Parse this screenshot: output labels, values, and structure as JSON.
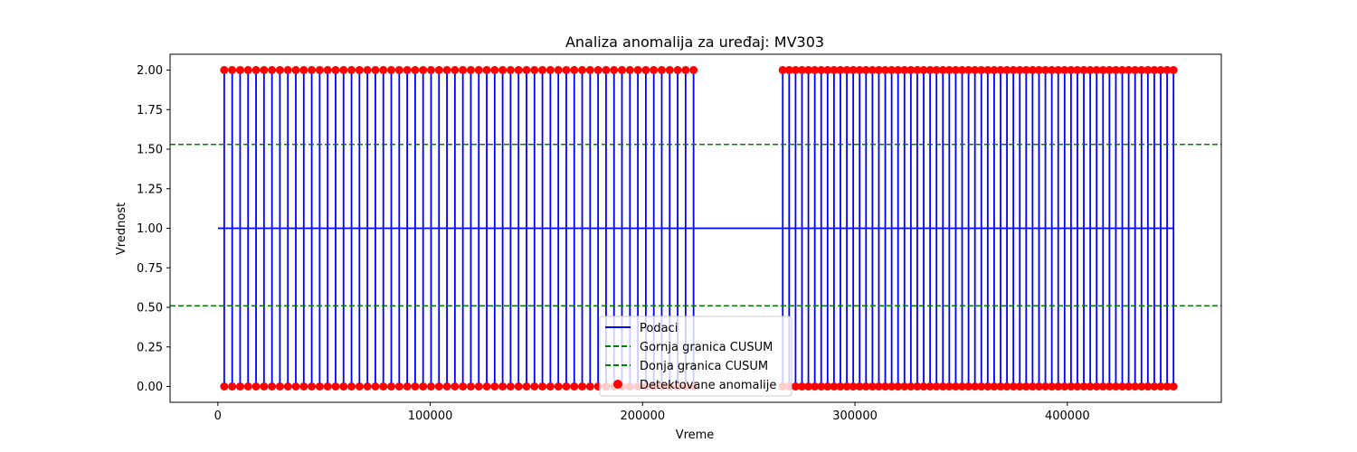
{
  "chart_data": {
    "type": "line",
    "title": "Analiza anomalija za uređaj: MV303",
    "xlabel": "Vreme",
    "ylabel": "Vrednost",
    "xlim": [
      -22500,
      472500
    ],
    "ylim": [
      -0.1,
      2.1
    ],
    "xticks": [
      0,
      100000,
      200000,
      300000,
      400000
    ],
    "xtick_labels": [
      "0",
      "100000",
      "200000",
      "300000",
      "400000"
    ],
    "yticks": [
      0.0,
      0.25,
      0.5,
      0.75,
      1.0,
      1.25,
      1.5,
      1.75,
      2.0
    ],
    "ytick_labels": [
      "0.00",
      "0.25",
      "0.50",
      "0.75",
      "1.00",
      "1.25",
      "1.50",
      "1.75",
      "2.00"
    ],
    "grid": false,
    "legend_position": "bottom-center",
    "series": [
      {
        "name": "Podaci",
        "kind": "line",
        "color": "#0000ff",
        "baseline": 1.0,
        "baseline_x_range": [
          0,
          450000
        ],
        "spike_values": [
          0,
          2
        ],
        "segments": [
          {
            "x_start": 3000,
            "x_end": 224000,
            "spike_count": 60
          },
          {
            "x_start": 266000,
            "x_end": 450000,
            "spike_count": 62
          }
        ]
      },
      {
        "name": "Gornja granica CUSUM",
        "kind": "hline",
        "y": 1.53,
        "color": "#008000",
        "dash": true
      },
      {
        "name": "Donja granica CUSUM",
        "kind": "hline",
        "y": 0.51,
        "color": "#008000",
        "dash": true
      },
      {
        "name": "Detektovane anomalije",
        "kind": "scatter",
        "color": "#ff0000",
        "values_at": [
          0,
          2
        ]
      }
    ]
  }
}
